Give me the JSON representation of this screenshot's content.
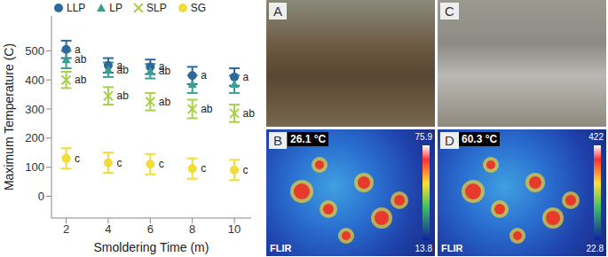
{
  "chart_data": {
    "type": "scatter",
    "x_label": "Smoldering Time (m)",
    "y_label": "Maximum Temperature (C)",
    "x": [
      2,
      4,
      6,
      8,
      10
    ],
    "xlim": [
      1.3,
      10.8
    ],
    "xticks": [
      2,
      4,
      6,
      8,
      10
    ],
    "ylim": [
      -75,
      620
    ],
    "yticks": [
      0,
      100,
      200,
      300,
      400,
      500
    ],
    "grid": false,
    "legend": "top",
    "series": [
      {
        "name": "LLP",
        "color": "#2b6a9b",
        "marker": "circle",
        "values": [
          505,
          450,
          445,
          415,
          410
        ],
        "errors": [
          30,
          25,
          25,
          30,
          30
        ],
        "letters": [
          "a",
          "a",
          "a",
          "a",
          "a"
        ]
      },
      {
        "name": "LP",
        "color": "#3a9f8c",
        "marker": "triangle",
        "values": [
          470,
          435,
          430,
          385,
          385
        ],
        "errors": [
          30,
          25,
          25,
          30,
          30
        ],
        "letters": [
          "ab",
          "ab",
          "ab",
          null,
          null
        ]
      },
      {
        "name": "SLP",
        "color": "#a9d04b",
        "marker": "x",
        "values": [
          400,
          345,
          325,
          300,
          285
        ],
        "errors": [
          28,
          30,
          30,
          32,
          30
        ],
        "letters": [
          "ab",
          "ab",
          "ab",
          "ab",
          "ab"
        ]
      },
      {
        "name": "SG",
        "color": "#f0dc3a",
        "marker": "circle",
        "values": [
          130,
          115,
          110,
          95,
          90
        ],
        "errors": [
          35,
          35,
          35,
          35,
          35
        ],
        "letters": [
          "c",
          "c",
          "c",
          "c",
          "c"
        ]
      }
    ]
  },
  "panels": [
    {
      "label": "A",
      "kind": "photo"
    },
    {
      "label": "C",
      "kind": "photo"
    },
    {
      "label": "B",
      "kind": "thermal",
      "readout": "26.1 °C",
      "scale_max": 75.9,
      "scale_min": 13.8,
      "brand": "FLIR"
    },
    {
      "label": "D",
      "kind": "thermal",
      "readout": "60.3 °C",
      "scale_max": 422,
      "scale_min": 22.8,
      "brand": "FLIR"
    }
  ]
}
